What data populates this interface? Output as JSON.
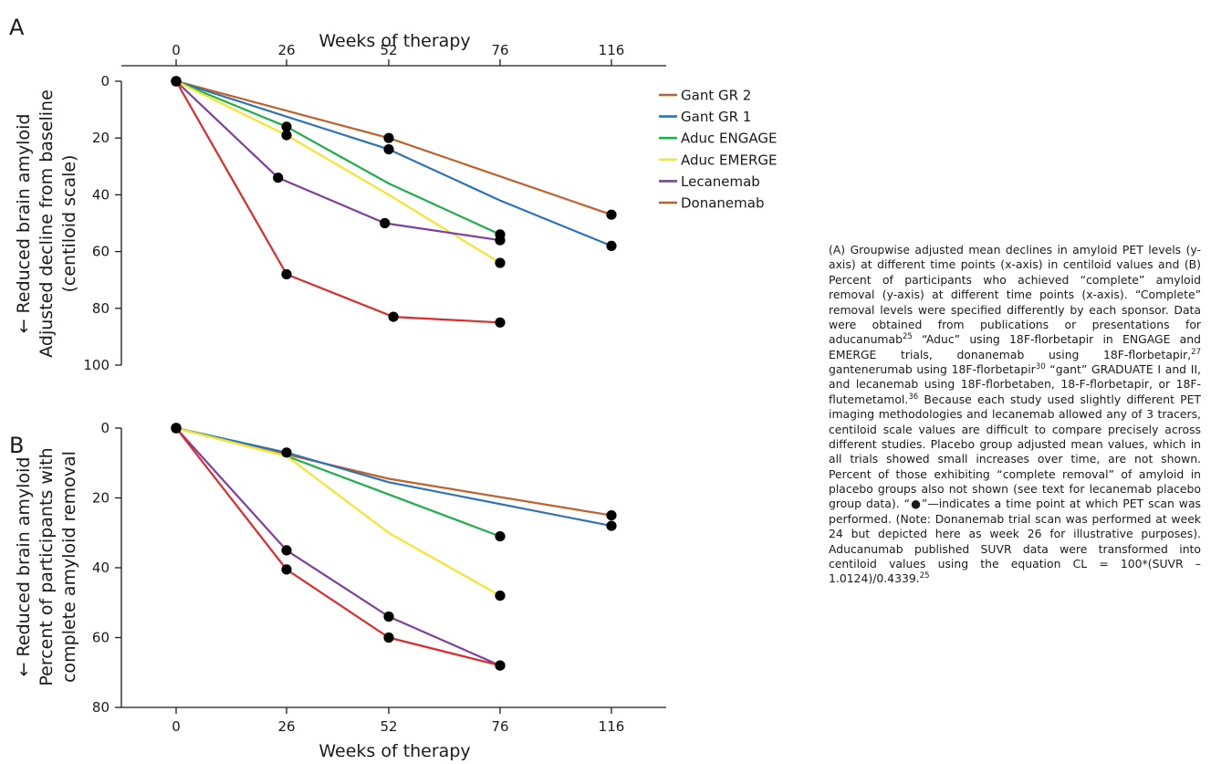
{
  "colors": {
    "Gant GR 2": "#c0612b",
    "Gant GR 1": "#2b72b9",
    "Aduc ENGAGE": "#1fae4a",
    "Aduc EMERGE": "#f5e42a",
    "Lecanemab": "#7d3f9b",
    "Donanemab": "#c0612b",
    "Donanemab_line": "#e02a2a",
    "axis": "#1a1a1a",
    "marker": "#000000"
  },
  "chart_data": [
    {
      "panel": "A",
      "type": "line",
      "xlabel": "Weeks of therapy",
      "ylabel_lines": [
        "← Reduced brain amyloid",
        "Adjusted decline from baseline",
        "(centiloid scale)"
      ],
      "x_ticks": [
        "0",
        "26",
        "52",
        "76",
        "116"
      ],
      "y_ticks": [
        0,
        20,
        40,
        60,
        80,
        100
      ],
      "ylim": [
        0,
        100
      ],
      "y_inverted": true,
      "x_axis_position": "top",
      "legend_position": "right",
      "legend": [
        "Gant GR 2",
        "Gant GR 1",
        "Aduc ENGAGE",
        "Aduc EMERGE",
        "Lecanemab",
        "Donanemab"
      ],
      "series": [
        {
          "name": "Gant GR 2",
          "color_key": "Gant GR 2",
          "points": [
            [
              0,
              0
            ],
            [
              52,
              20
            ],
            [
              116,
              47
            ]
          ],
          "markers": [
            [
              0,
              0
            ],
            [
              52,
              20
            ],
            [
              116,
              47
            ]
          ]
        },
        {
          "name": "Gant GR 1",
          "color_key": "Gant GR 1",
          "points": [
            [
              0,
              0
            ],
            [
              52,
              24
            ],
            [
              76,
              42
            ],
            [
              116,
              58
            ]
          ],
          "markers": [
            [
              0,
              0
            ],
            [
              52,
              24
            ],
            [
              116,
              58
            ]
          ]
        },
        {
          "name": "Aduc ENGAGE",
          "color_key": "Aduc ENGAGE",
          "points": [
            [
              0,
              0
            ],
            [
              26,
              16
            ],
            [
              52,
              36
            ],
            [
              76,
              54
            ]
          ],
          "markers": [
            [
              0,
              0
            ],
            [
              26,
              16
            ],
            [
              76,
              54
            ]
          ]
        },
        {
          "name": "Aduc EMERGE",
          "color_key": "Aduc EMERGE",
          "points": [
            [
              0,
              0
            ],
            [
              26,
              19
            ],
            [
              52,
              40
            ],
            [
              76,
              64
            ]
          ],
          "markers": [
            [
              0,
              0
            ],
            [
              26,
              19
            ],
            [
              76,
              64
            ]
          ]
        },
        {
          "name": "Lecanemab",
          "color_key": "Lecanemab",
          "points": [
            [
              0,
              0
            ],
            [
              24,
              34
            ],
            [
              51,
              50
            ],
            [
              76,
              56
            ]
          ],
          "markers": [
            [
              0,
              0
            ],
            [
              24,
              34
            ],
            [
              51,
              50
            ],
            [
              76,
              56
            ]
          ]
        },
        {
          "name": "Donanemab",
          "color_key": "Donanemab_line",
          "points": [
            [
              0,
              0
            ],
            [
              26,
              68
            ],
            [
              53,
              83
            ],
            [
              76,
              85
            ]
          ],
          "markers": [
            [
              0,
              0
            ],
            [
              26,
              68
            ],
            [
              53,
              83
            ],
            [
              76,
              85
            ]
          ]
        }
      ]
    },
    {
      "panel": "B",
      "type": "line",
      "xlabel": "Weeks of therapy",
      "ylabel_lines": [
        "← Reduced brain amyloid",
        "Percent of participants with",
        "complete amyloid removal"
      ],
      "x_ticks": [
        "0",
        "26",
        "52",
        "76",
        "116"
      ],
      "y_ticks": [
        0,
        20,
        40,
        60,
        80
      ],
      "ylim": [
        0,
        80
      ],
      "y_inverted": true,
      "x_axis_position": "bottom",
      "series": [
        {
          "name": "Gant GR 2",
          "color_key": "Gant GR 2",
          "points": [
            [
              0,
              0
            ],
            [
              52,
              14.5
            ],
            [
              116,
              25
            ]
          ],
          "markers": [
            [
              0,
              0
            ],
            [
              26,
              7
            ],
            [
              116,
              25
            ]
          ]
        },
        {
          "name": "Gant GR 1",
          "color_key": "Gant GR 1",
          "points": [
            [
              0,
              0
            ],
            [
              26,
              7
            ],
            [
              52,
              15.5
            ],
            [
              116,
              28
            ]
          ],
          "markers": [
            [
              0,
              0
            ],
            [
              116,
              28
            ]
          ]
        },
        {
          "name": "Aduc ENGAGE",
          "color_key": "Aduc ENGAGE",
          "points": [
            [
              0,
              0
            ],
            [
              26,
              8
            ],
            [
              52,
              19
            ],
            [
              76,
              31
            ]
          ],
          "markers": [
            [
              0,
              0
            ],
            [
              76,
              31
            ]
          ]
        },
        {
          "name": "Aduc EMERGE",
          "color_key": "Aduc EMERGE",
          "points": [
            [
              0,
              0
            ],
            [
              26,
              8
            ],
            [
              52,
              30
            ],
            [
              76,
              48
            ]
          ],
          "markers": [
            [
              0,
              0
            ],
            [
              76,
              48
            ]
          ]
        },
        {
          "name": "Lecanemab",
          "color_key": "Lecanemab",
          "points": [
            [
              0,
              0
            ],
            [
              26,
              35
            ],
            [
              52,
              54
            ],
            [
              76,
              68
            ]
          ],
          "markers": [
            [
              0,
              0
            ],
            [
              26,
              35
            ],
            [
              52,
              54
            ],
            [
              76,
              68
            ]
          ]
        },
        {
          "name": "Donanemab",
          "color_key": "Donanemab_line",
          "points": [
            [
              0,
              0
            ],
            [
              26,
              40.5
            ],
            [
              52,
              60
            ],
            [
              76,
              68
            ]
          ],
          "markers": [
            [
              0,
              0
            ],
            [
              26,
              40.5
            ],
            [
              52,
              60
            ],
            [
              76,
              68
            ]
          ]
        }
      ]
    }
  ],
  "caption_parts": [
    {
      "t": "(A) Groupwise adjusted mean declines in amyloid PET levels (y-axis) at different time points (x-axis) in centiloid values and (B) Percent of participants who achieved “complete” amyloid removal (y-axis) at different time points (x-axis). “Complete” removal levels were specified differently by each sponsor. Data were obtained from publications or presentations for aducanumab"
    },
    {
      "sup": "25"
    },
    {
      "t": " “Aduc” using 18F-florbetapir in ENGAGE and EMERGE trials, donanemab using 18F-florbetapir,"
    },
    {
      "sup": "27"
    },
    {
      "t": " gantenerumab using 18F-florbetapir"
    },
    {
      "sup": "30"
    },
    {
      "t": " “gant” GRADUATE I and II, and lecanemab using 18F-florbetaben, 18-F-florbetapir, or 18F-flutemetamol."
    },
    {
      "sup": "36"
    },
    {
      "t": " Because each study used slightly different PET imaging methodologies and lecanemab allowed any of 3 tracers, centiloid scale values are difficult to compare precisely across different studies. Placebo group adjusted mean values, which in all trials showed small increases over time, are not shown. Percent of those exhibiting “complete removal” of amyloid in placebo groups also not shown (see text for lecanemab placebo group data). “●”—indicates a time point at which PET scan was performed. (Note: Donanemab trial scan was performed at week 24 but depicted here as week 26 for illustrative purposes). Aducanumab published SUVR data were transformed into centiloid values using the equation CL = 100*(SUVR – 1.0124)/0.4339."
    },
    {
      "sup": "25"
    }
  ]
}
